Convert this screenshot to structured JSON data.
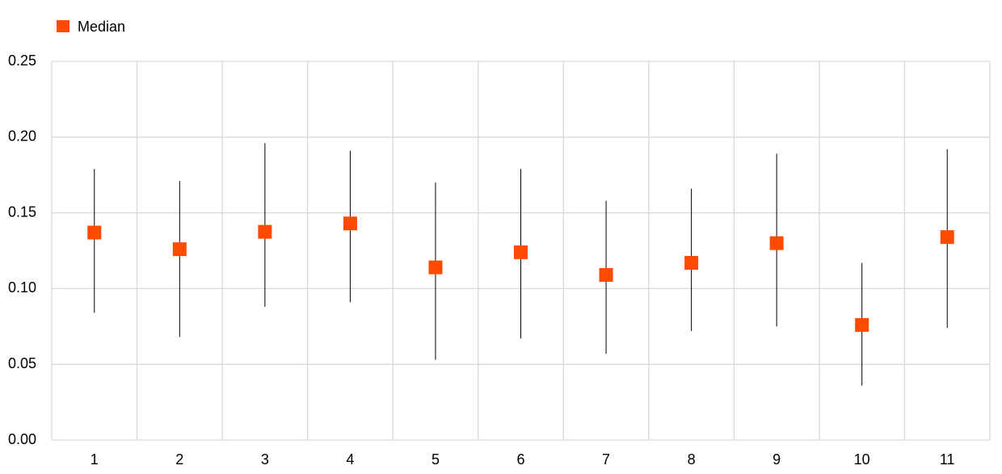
{
  "chart_data": {
    "type": "range",
    "categories": [
      "1",
      "2",
      "3",
      "4",
      "5",
      "6",
      "7",
      "8",
      "9",
      "10",
      "11"
    ],
    "series": [
      {
        "name": "Median",
        "color": "#ff4b00",
        "values": [
          0.137,
          0.126,
          0.1375,
          0.143,
          0.114,
          0.124,
          0.109,
          0.117,
          0.13,
          0.076,
          0.134
        ]
      }
    ],
    "low": [
      0.084,
      0.068,
      0.088,
      0.091,
      0.053,
      0.067,
      0.057,
      0.072,
      0.075,
      0.036,
      0.074
    ],
    "high": [
      0.179,
      0.171,
      0.196,
      0.191,
      0.17,
      0.179,
      0.158,
      0.166,
      0.189,
      0.117,
      0.192
    ],
    "ylim": [
      0,
      0.25
    ],
    "yticks": [
      {
        "value": 0,
        "label": "0.00"
      },
      0.05,
      {
        "value": 0.1,
        "label": "0.10"
      },
      0.15,
      {
        "value": 0.2,
        "label": "0.20"
      },
      0.25
    ],
    "grid": true,
    "legend": "top-left"
  }
}
